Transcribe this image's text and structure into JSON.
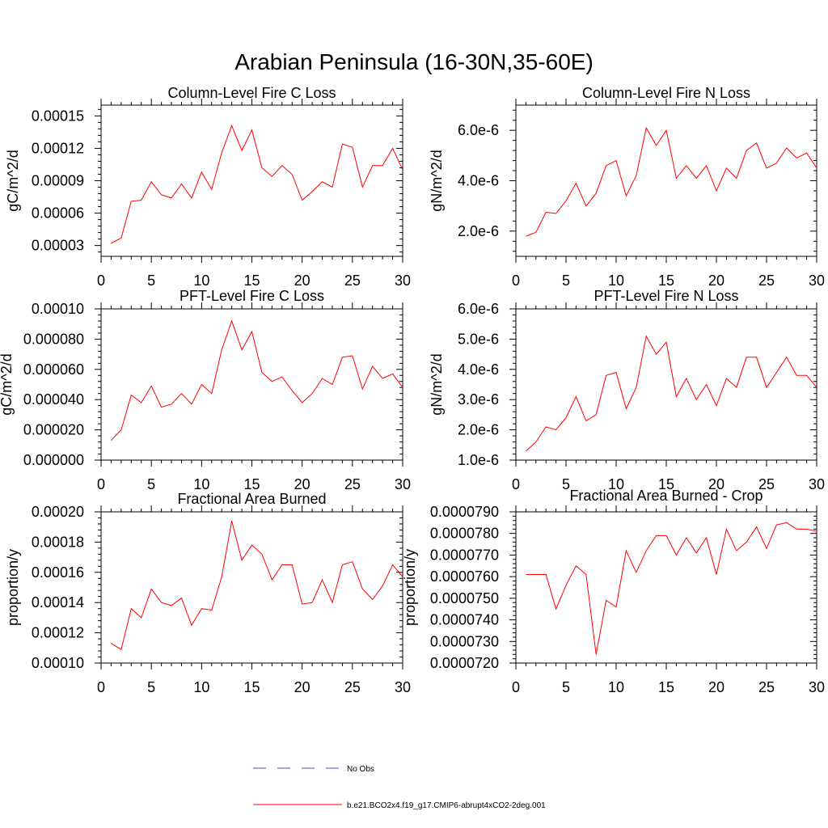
{
  "figure": {
    "title": "Arabian Peninsula (16-30N,35-60E)"
  },
  "colors": {
    "model_line": "#ff0000",
    "obs_line": "#4a4adc",
    "axis": "#000000"
  },
  "legend": {
    "items": [
      {
        "label": "No Obs",
        "style": "dashed",
        "color": "#4a4adc"
      },
      {
        "label": "b.e21.BCO2x4.f19_g17.CMIP6-abrupt4xCO2-2deg.001",
        "style": "solid",
        "color": "#ff0000"
      }
    ]
  },
  "chart_data": [
    {
      "type": "line",
      "title": "Column-Level Fire C Loss",
      "xlabel": "",
      "ylabel": "gC/m^2/d",
      "xlim": [
        0,
        30
      ],
      "ylim": [
        2e-05,
        0.00016
      ],
      "xticks": [
        0,
        5,
        10,
        15,
        20,
        25,
        30
      ],
      "xtick_labels": [
        "0",
        "5",
        "10",
        "15",
        "20",
        "25",
        "30"
      ],
      "yticks": [
        3e-05,
        6e-05,
        9e-05,
        0.00012,
        0.00015
      ],
      "ytick_labels": [
        "0.00003",
        "0.00006",
        "0.00009",
        "0.00012",
        "0.00015"
      ],
      "series": [
        {
          "name": "b.e21.BCO2x4.f19_g17.CMIP6-abrupt4xCO2-2deg.001",
          "x": [
            1,
            2,
            3,
            4,
            5,
            6,
            7,
            8,
            9,
            10,
            11,
            12,
            13,
            14,
            15,
            16,
            17,
            18,
            19,
            20,
            21,
            22,
            23,
            24,
            25,
            26,
            27,
            28,
            29,
            30
          ],
          "values": [
            3.2e-05,
            3.7e-05,
            7.1e-05,
            7.2e-05,
            8.9e-05,
            7.7e-05,
            7.4e-05,
            8.7e-05,
            7.4e-05,
            9.8e-05,
            8.2e-05,
            0.000116,
            0.000141,
            0.000118,
            0.000137,
            0.000102,
            9.4e-05,
            0.000104,
            9.6e-05,
            7.2e-05,
            8e-05,
            8.9e-05,
            8.4e-05,
            0.000124,
            0.000121,
            8.4e-05,
            0.000104,
            0.000104,
            0.00012,
            0.0001
          ]
        }
      ]
    },
    {
      "type": "line",
      "title": "Column-Level Fire N Loss",
      "xlabel": "",
      "ylabel": "gN/m^2/d",
      "xlim": [
        0,
        30
      ],
      "ylim": [
        1e-06,
        7e-06
      ],
      "xticks": [
        0,
        5,
        10,
        15,
        20,
        25,
        30
      ],
      "xtick_labels": [
        "0",
        "5",
        "10",
        "15",
        "20",
        "25",
        "30"
      ],
      "yticks": [
        2e-06,
        4e-06,
        6e-06
      ],
      "ytick_labels": [
        "2.0e-6",
        "4.0e-6",
        "6.0e-6"
      ],
      "series": [
        {
          "name": "b.e21.BCO2x4.f19_g17.CMIP6-abrupt4xCO2-2deg.001",
          "x": [
            1,
            2,
            3,
            4,
            5,
            6,
            7,
            8,
            9,
            10,
            11,
            12,
            13,
            14,
            15,
            16,
            17,
            18,
            19,
            20,
            21,
            22,
            23,
            24,
            25,
            26,
            27,
            28,
            29,
            30
          ],
          "values": [
            1.8e-06,
            1.95e-06,
            2.75e-06,
            2.7e-06,
            3.2e-06,
            3.9e-06,
            3e-06,
            3.5e-06,
            4.6e-06,
            4.8e-06,
            3.4e-06,
            4.2e-06,
            6.1e-06,
            5.4e-06,
            6e-06,
            4.1e-06,
            4.6e-06,
            4.1e-06,
            4.6e-06,
            3.6e-06,
            4.5e-06,
            4.1e-06,
            5.2e-06,
            5.5e-06,
            4.5e-06,
            4.7e-06,
            5.3e-06,
            4.9e-06,
            5.1e-06,
            4.5e-06
          ]
        }
      ]
    },
    {
      "type": "line",
      "title": "PFT-Level Fire C Loss",
      "xlabel": "",
      "ylabel": "gC/m^2/d",
      "xlim": [
        0,
        30
      ],
      "ylim": [
        0,
        0.0001
      ],
      "xticks": [
        0,
        5,
        10,
        15,
        20,
        25,
        30
      ],
      "xtick_labels": [
        "0",
        "5",
        "10",
        "15",
        "20",
        "25",
        "30"
      ],
      "yticks": [
        0,
        2e-05,
        4e-05,
        6e-05,
        8e-05,
        0.0001
      ],
      "ytick_labels": [
        "0.000000",
        "0.000020",
        "0.000040",
        "0.000060",
        "0.000080",
        "0.00010"
      ],
      "series": [
        {
          "name": "b.e21.BCO2x4.f19_g17.CMIP6-abrupt4xCO2-2deg.001",
          "x": [
            1,
            2,
            3,
            4,
            5,
            6,
            7,
            8,
            9,
            10,
            11,
            12,
            13,
            14,
            15,
            16,
            17,
            18,
            19,
            20,
            21,
            22,
            23,
            24,
            25,
            26,
            27,
            28,
            29,
            30
          ],
          "values": [
            1.3e-05,
            2e-05,
            4.3e-05,
            3.8e-05,
            4.9e-05,
            3.5e-05,
            3.7e-05,
            4.4e-05,
            3.7e-05,
            5e-05,
            4.4e-05,
            7.3e-05,
            9.2e-05,
            7.3e-05,
            8.5e-05,
            5.8e-05,
            5.2e-05,
            5.5e-05,
            4.6e-05,
            3.8e-05,
            4.4e-05,
            5.4e-05,
            5e-05,
            6.8e-05,
            6.9e-05,
            4.7e-05,
            6.2e-05,
            5.4e-05,
            5.7e-05,
            4.8e-05
          ]
        }
      ]
    },
    {
      "type": "line",
      "title": "PFT-Level Fire N Loss",
      "xlabel": "",
      "ylabel": "gN/m^2/d",
      "xlim": [
        0,
        30
      ],
      "ylim": [
        1e-06,
        6e-06
      ],
      "xticks": [
        0,
        5,
        10,
        15,
        20,
        25,
        30
      ],
      "xtick_labels": [
        "0",
        "5",
        "10",
        "15",
        "20",
        "25",
        "30"
      ],
      "yticks": [
        1e-06,
        2e-06,
        3e-06,
        4e-06,
        5e-06,
        6e-06
      ],
      "ytick_labels": [
        "1.0e-6",
        "2.0e-6",
        "3.0e-6",
        "4.0e-6",
        "5.0e-6",
        "6.0e-6"
      ],
      "series": [
        {
          "name": "b.e21.BCO2x4.f19_g17.CMIP6-abrupt4xCO2-2deg.001",
          "x": [
            1,
            2,
            3,
            4,
            5,
            6,
            7,
            8,
            9,
            10,
            11,
            12,
            13,
            14,
            15,
            16,
            17,
            18,
            19,
            20,
            21,
            22,
            23,
            24,
            25,
            26,
            27,
            28,
            29,
            30
          ],
          "values": [
            1.3e-06,
            1.6e-06,
            2.1e-06,
            2e-06,
            2.4e-06,
            3.1e-06,
            2.3e-06,
            2.5e-06,
            3.8e-06,
            3.9e-06,
            2.7e-06,
            3.4e-06,
            5.1e-06,
            4.5e-06,
            4.9e-06,
            3.1e-06,
            3.7e-06,
            3e-06,
            3.5e-06,
            2.8e-06,
            3.7e-06,
            3.4e-06,
            4.4e-06,
            4.4e-06,
            3.4e-06,
            3.9e-06,
            4.4e-06,
            3.8e-06,
            3.8e-06,
            3.4e-06
          ]
        }
      ]
    },
    {
      "type": "line",
      "title": "Fractional Area Burned",
      "xlabel": "",
      "ylabel": "proportion/y",
      "xlim": [
        0,
        30
      ],
      "ylim": [
        0.0001,
        0.0002
      ],
      "xticks": [
        0,
        5,
        10,
        15,
        20,
        25,
        30
      ],
      "xtick_labels": [
        "0",
        "5",
        "10",
        "15",
        "20",
        "25",
        "30"
      ],
      "yticks": [
        0.0001,
        0.00012,
        0.00014,
        0.00016,
        0.00018,
        0.0002
      ],
      "ytick_labels": [
        "0.00010",
        "0.00012",
        "0.00014",
        "0.00016",
        "0.00018",
        "0.00020"
      ],
      "series": [
        {
          "name": "b.e21.BCO2x4.f19_g17.CMIP6-abrupt4xCO2-2deg.001",
          "x": [
            1,
            2,
            3,
            4,
            5,
            6,
            7,
            8,
            9,
            10,
            11,
            12,
            13,
            14,
            15,
            16,
            17,
            18,
            19,
            20,
            21,
            22,
            23,
            24,
            25,
            26,
            27,
            28,
            29,
            30
          ],
          "values": [
            0.000113,
            0.000109,
            0.000136,
            0.00013,
            0.000149,
            0.00014,
            0.000138,
            0.000143,
            0.000125,
            0.000136,
            0.000135,
            0.000157,
            0.000194,
            0.000168,
            0.000178,
            0.000172,
            0.000155,
            0.000165,
            0.000165,
            0.000139,
            0.00014,
            0.000155,
            0.00014,
            0.000165,
            0.000167,
            0.000149,
            0.000142,
            0.000151,
            0.000165,
            0.000157
          ]
        }
      ]
    },
    {
      "type": "line",
      "title": "Fractional Area Burned - Crop",
      "xlabel": "",
      "ylabel": "proportion/y",
      "xlim": [
        0,
        30
      ],
      "ylim": [
        7.2e-05,
        7.9e-05
      ],
      "xticks": [
        0,
        5,
        10,
        15,
        20,
        25,
        30
      ],
      "xtick_labels": [
        "0",
        "5",
        "10",
        "15",
        "20",
        "25",
        "30"
      ],
      "yticks": [
        7.2e-05,
        7.3e-05,
        7.4e-05,
        7.5e-05,
        7.6e-05,
        7.7e-05,
        7.8e-05,
        7.9e-05
      ],
      "ytick_labels": [
        "0.0000720",
        "0.0000730",
        "0.0000740",
        "0.0000750",
        "0.0000760",
        "0.0000770",
        "0.0000780",
        "0.0000790"
      ],
      "series": [
        {
          "name": "b.e21.BCO2x4.f19_g17.CMIP6-abrupt4xCO2-2deg.001",
          "x": [
            1,
            2,
            3,
            4,
            5,
            6,
            7,
            8,
            9,
            10,
            11,
            12,
            13,
            14,
            15,
            16,
            17,
            18,
            19,
            20,
            21,
            22,
            23,
            24,
            25,
            26,
            27,
            28,
            29,
            30
          ],
          "values": [
            7.61e-05,
            7.61e-05,
            7.61e-05,
            7.45e-05,
            7.56e-05,
            7.65e-05,
            7.61e-05,
            7.24e-05,
            7.49e-05,
            7.46e-05,
            7.72e-05,
            7.62e-05,
            7.72e-05,
            7.79e-05,
            7.79e-05,
            7.7e-05,
            7.78e-05,
            7.71e-05,
            7.78e-05,
            7.61e-05,
            7.82e-05,
            7.72e-05,
            7.76e-05,
            7.83e-05,
            7.73e-05,
            7.84e-05,
            7.85e-05,
            7.82e-05,
            7.82e-05,
            7.81e-05
          ]
        }
      ]
    }
  ]
}
